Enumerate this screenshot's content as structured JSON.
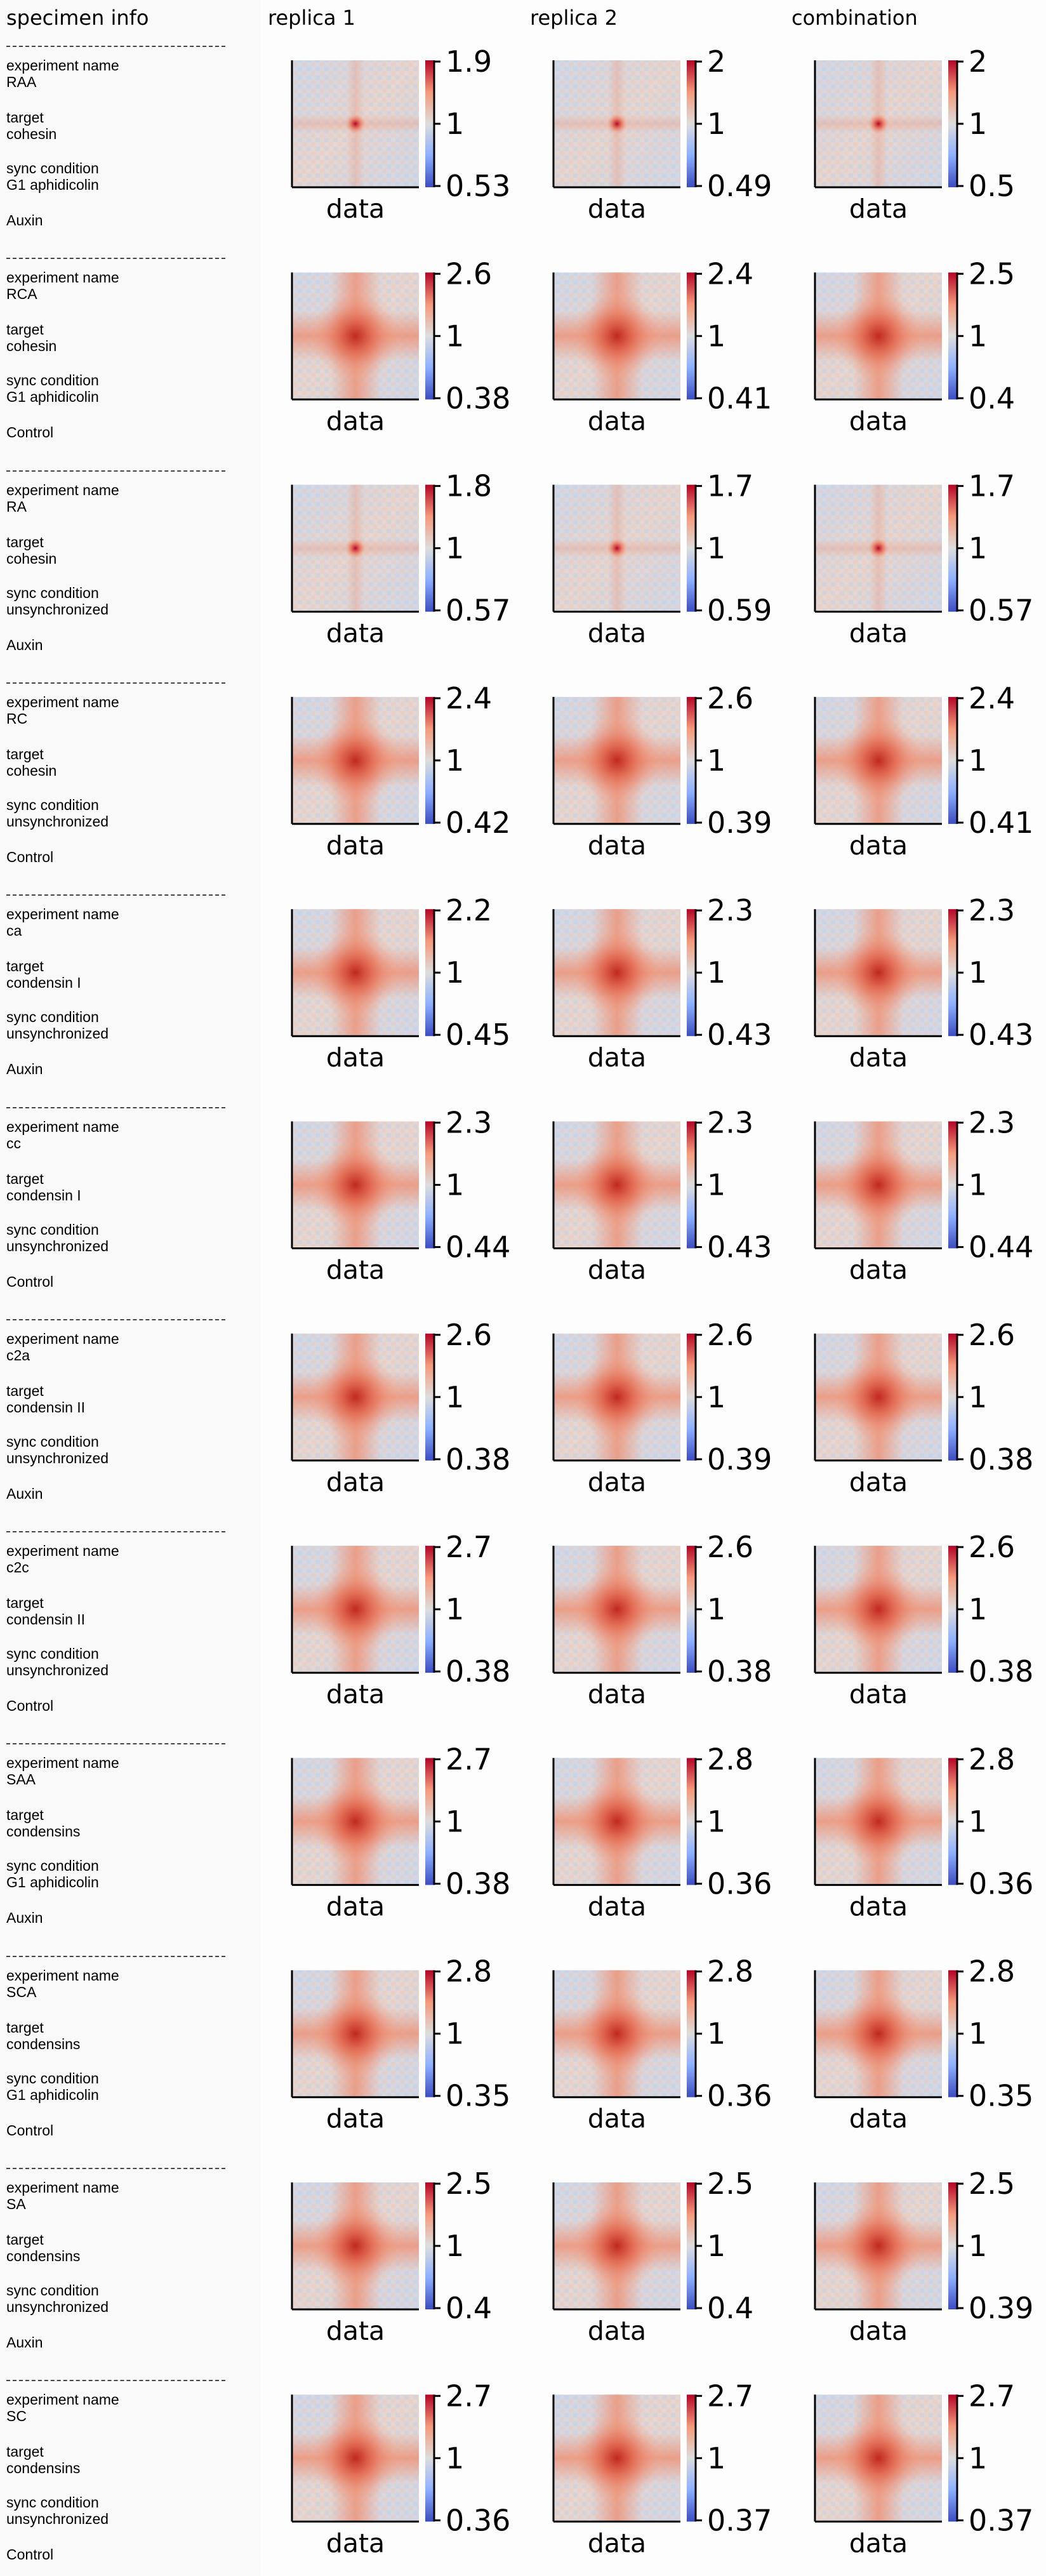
{
  "columns": {
    "info": "specimen info",
    "rep1": "replica 1",
    "rep2": "replica 2",
    "comb": "combination"
  },
  "labels": {
    "experiment": "experiment name",
    "target": "target",
    "sync": "sync condition"
  },
  "rows": [
    {
      "experiment": "RAA",
      "target": "cohesin",
      "sync": "G1 aphidicolin",
      "treatment": "Auxin"
    },
    {
      "experiment": "RCA",
      "target": "cohesin",
      "sync": "G1 aphidicolin",
      "treatment": "Control"
    },
    {
      "experiment": "RA",
      "target": "cohesin",
      "sync": "unsynchronized",
      "treatment": "Auxin"
    },
    {
      "experiment": "RC",
      "target": "cohesin",
      "sync": "unsynchronized",
      "treatment": "Control"
    },
    {
      "experiment": "ca",
      "target": "condensin I",
      "sync": "unsynchronized",
      "treatment": "Auxin"
    },
    {
      "experiment": "cc",
      "target": "condensin I",
      "sync": "unsynchronized",
      "treatment": "Control"
    },
    {
      "experiment": "c2a",
      "target": "condensin II",
      "sync": "unsynchronized",
      "treatment": "Auxin"
    },
    {
      "experiment": "c2c",
      "target": "condensin II",
      "sync": "unsynchronized",
      "treatment": "Control"
    },
    {
      "experiment": "SAA",
      "target": "condensins",
      "sync": "G1 aphidicolin",
      "treatment": "Auxin"
    },
    {
      "experiment": "SCA",
      "target": "condensins",
      "sync": "G1 aphidicolin",
      "treatment": "Control"
    },
    {
      "experiment": "SA",
      "target": "condensins",
      "sync": "unsynchronized",
      "treatment": "Auxin"
    },
    {
      "experiment": "SC",
      "target": "condensins",
      "sync": "unsynchronized",
      "treatment": "Control"
    }
  ],
  "chart_data": {
    "type": "heatmap",
    "xlabel": "data",
    "colormap": "coolwarm",
    "colors": {
      "low": "#3b4cc0",
      "mid": "#dddddd",
      "high": "#b40426"
    },
    "colorbar_mid_label": "1",
    "panels": [
      {
        "row": "RAA",
        "replica1": {
          "max": "1.9",
          "min": "0.53"
        },
        "replica2": {
          "max": "2",
          "min": "0.49"
        },
        "combination": {
          "max": "2",
          "min": "0.5"
        }
      },
      {
        "row": "RCA",
        "replica1": {
          "max": "2.6",
          "min": "0.38"
        },
        "replica2": {
          "max": "2.4",
          "min": "0.41"
        },
        "combination": {
          "max": "2.5",
          "min": "0.4"
        }
      },
      {
        "row": "RA",
        "replica1": {
          "max": "1.8",
          "min": "0.57"
        },
        "replica2": {
          "max": "1.7",
          "min": "0.59"
        },
        "combination": {
          "max": "1.7",
          "min": "0.57"
        }
      },
      {
        "row": "RC",
        "replica1": {
          "max": "2.4",
          "min": "0.42"
        },
        "replica2": {
          "max": "2.6",
          "min": "0.39"
        },
        "combination": {
          "max": "2.4",
          "min": "0.41"
        }
      },
      {
        "row": "ca",
        "replica1": {
          "max": "2.2",
          "min": "0.45"
        },
        "replica2": {
          "max": "2.3",
          "min": "0.43"
        },
        "combination": {
          "max": "2.3",
          "min": "0.43"
        }
      },
      {
        "row": "cc",
        "replica1": {
          "max": "2.3",
          "min": "0.44"
        },
        "replica2": {
          "max": "2.3",
          "min": "0.43"
        },
        "combination": {
          "max": "2.3",
          "min": "0.44"
        }
      },
      {
        "row": "c2a",
        "replica1": {
          "max": "2.6",
          "min": "0.38"
        },
        "replica2": {
          "max": "2.6",
          "min": "0.39"
        },
        "combination": {
          "max": "2.6",
          "min": "0.38"
        }
      },
      {
        "row": "c2c",
        "replica1": {
          "max": "2.7",
          "min": "0.38"
        },
        "replica2": {
          "max": "2.6",
          "min": "0.38"
        },
        "combination": {
          "max": "2.6",
          "min": "0.38"
        }
      },
      {
        "row": "SAA",
        "replica1": {
          "max": "2.7",
          "min": "0.38"
        },
        "replica2": {
          "max": "2.8",
          "min": "0.36"
        },
        "combination": {
          "max": "2.8",
          "min": "0.36"
        }
      },
      {
        "row": "SCA",
        "replica1": {
          "max": "2.8",
          "min": "0.35"
        },
        "replica2": {
          "max": "2.8",
          "min": "0.36"
        },
        "combination": {
          "max": "2.8",
          "min": "0.35"
        }
      },
      {
        "row": "SA",
        "replica1": {
          "max": "2.5",
          "min": "0.4"
        },
        "replica2": {
          "max": "2.5",
          "min": "0.4"
        },
        "combination": {
          "max": "2.5",
          "min": "0.39"
        }
      },
      {
        "row": "SC",
        "replica1": {
          "max": "2.7",
          "min": "0.36"
        },
        "replica2": {
          "max": "2.7",
          "min": "0.37"
        },
        "combination": {
          "max": "2.7",
          "min": "0.37"
        }
      }
    ]
  }
}
